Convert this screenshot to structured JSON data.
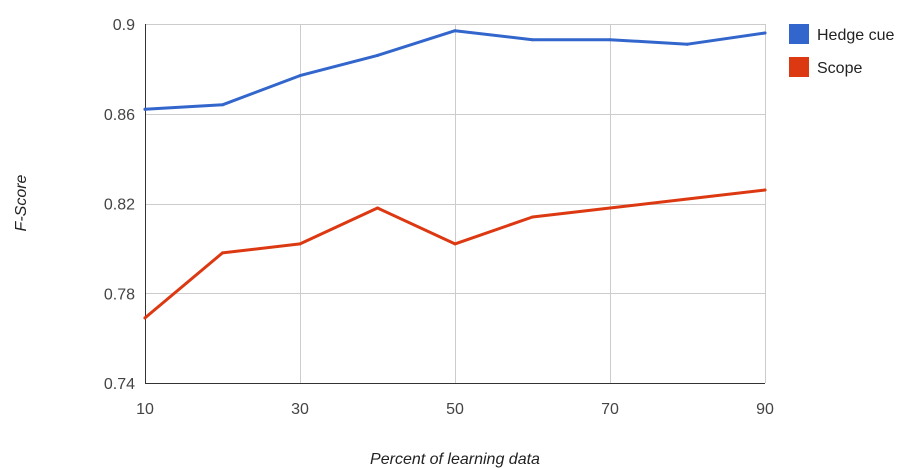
{
  "chart_data": {
    "type": "line",
    "xlabel": "Percent of learning data",
    "ylabel": "F-Score",
    "xlim": [
      10,
      90
    ],
    "ylim": [
      0.74,
      0.9
    ],
    "x_ticks": [
      "10",
      "30",
      "50",
      "70",
      "90"
    ],
    "y_ticks": [
      "0.74",
      "0.78",
      "0.82",
      "0.86",
      "0.9"
    ],
    "x_tick_values": [
      10,
      30,
      50,
      70,
      90
    ],
    "y_tick_values": [
      0.74,
      0.78,
      0.82,
      0.86,
      0.9
    ],
    "x_grid_values": [
      10,
      30,
      50,
      70,
      90
    ],
    "grid": true,
    "legend_position": "right",
    "x": [
      10,
      20,
      30,
      40,
      50,
      60,
      70,
      80,
      90
    ],
    "series": [
      {
        "name": "Hedge cue",
        "color": "#3366cc",
        "values": [
          0.862,
          0.864,
          0.877,
          0.886,
          0.897,
          0.893,
          0.893,
          0.891,
          0.896
        ]
      },
      {
        "name": "Scope",
        "color": "#dc3912",
        "values": [
          0.769,
          0.798,
          0.802,
          0.818,
          0.802,
          0.814,
          0.818,
          0.822,
          0.826
        ]
      }
    ]
  }
}
